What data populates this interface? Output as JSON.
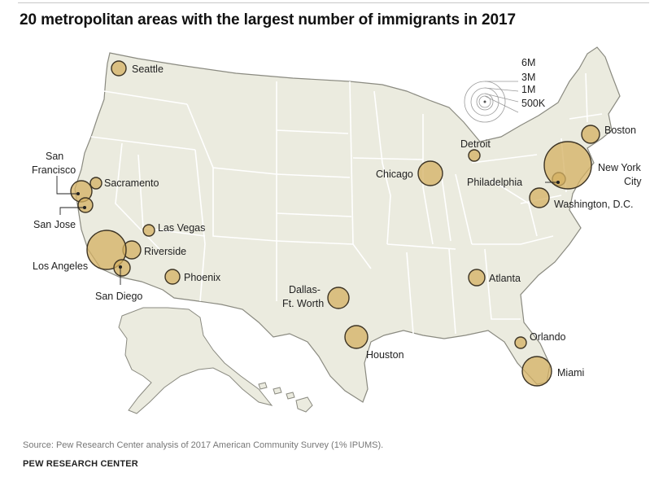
{
  "title": "20 metropolitan areas with the largest number of immigrants in 2017",
  "source": "Source: Pew Research Center analysis of 2017 American Community Survey (1% IPUMS).",
  "org": "PEW RESEARCH CENTER",
  "colors": {
    "land": "#ebebdf",
    "border": "#ffffff",
    "outline": "#8a8a80",
    "bubble": "#d4b062",
    "bubble_stroke": "#3d3424"
  },
  "legend": {
    "labels": [
      "6M",
      "3M",
      "1M",
      "500K"
    ]
  },
  "cities": [
    {
      "label": "Seattle"
    },
    {
      "label": "San Francisco"
    },
    {
      "label": "Sacramento"
    },
    {
      "label": "San Jose"
    },
    {
      "label": "Las Vegas"
    },
    {
      "label": "Riverside"
    },
    {
      "label": "Los Angeles"
    },
    {
      "label": "San Diego"
    },
    {
      "label": "Phoenix"
    },
    {
      "label": "Dallas-Ft. Worth"
    },
    {
      "label": "Houston"
    },
    {
      "label": "Chicago"
    },
    {
      "label": "Detroit"
    },
    {
      "label": "Atlanta"
    },
    {
      "label": "Orlando"
    },
    {
      "label": "Miami"
    },
    {
      "label": "Washington, D.C."
    },
    {
      "label": "Philadelphia"
    },
    {
      "label": "New York City"
    },
    {
      "label": "Boston"
    }
  ]
}
